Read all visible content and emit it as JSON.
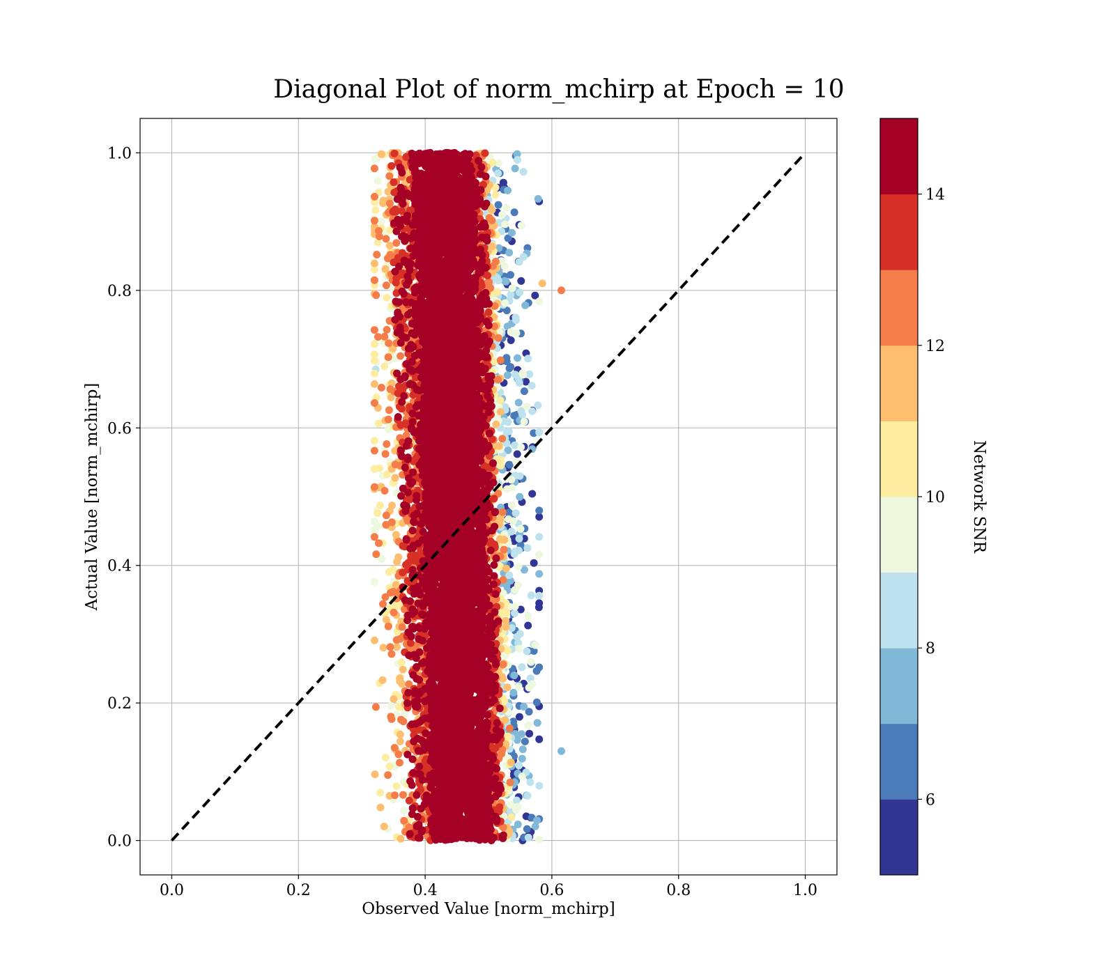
{
  "chart_data": {
    "type": "scatter",
    "title": "Diagonal Plot of norm_mchirp at Epoch = 10",
    "xlabel": "Observed Value [norm_mchirp]",
    "ylabel": "Actual Value [norm_mchirp]",
    "xlim": [
      -0.05,
      1.05
    ],
    "ylim": [
      -0.05,
      1.05
    ],
    "x_ticks": [
      0.0,
      0.2,
      0.4,
      0.6,
      0.8,
      1.0
    ],
    "y_ticks": [
      0.0,
      0.2,
      0.4,
      0.6,
      0.8,
      1.0
    ],
    "x_tick_labels": [
      "0.0",
      "0.2",
      "0.4",
      "0.6",
      "0.8",
      "1.0"
    ],
    "y_tick_labels": [
      "0.0",
      "0.2",
      "0.4",
      "0.6",
      "0.8",
      "1.0"
    ],
    "grid": true,
    "reference_line": {
      "x": [
        0.0,
        1.0
      ],
      "y": [
        0.0,
        1.0
      ],
      "style": "dashed",
      "color": "#000000"
    },
    "point_cloud": {
      "description_ranges": {
        "x_center_at_y0": 0.46,
        "x_center_at_y1": 0.43,
        "x_range": [
          0.32,
          0.62
        ],
        "y_range": [
          0.0,
          1.0
        ]
      },
      "outliers": [
        {
          "x": 0.615,
          "y": 0.8,
          "snr": 12.5
        },
        {
          "x": 0.615,
          "y": 0.13,
          "snr": 7.5
        },
        {
          "x": 0.585,
          "y": 0.81,
          "snr": 11.5
        },
        {
          "x": 0.322,
          "y": 0.685,
          "snr": 8.5
        }
      ]
    },
    "colorbar": {
      "label": "Network SNR",
      "range": [
        5,
        15
      ],
      "ticks": [
        6,
        8,
        10,
        12,
        14
      ],
      "tick_labels": [
        "6",
        "8",
        "10",
        "12",
        "14"
      ],
      "bins": [
        {
          "from": 5,
          "to": 6,
          "color": "#313695"
        },
        {
          "from": 6,
          "to": 7,
          "color": "#4a7ab7"
        },
        {
          "from": 7,
          "to": 8,
          "color": "#81b7d7"
        },
        {
          "from": 8,
          "to": 9,
          "color": "#bde2ee"
        },
        {
          "from": 9,
          "to": 10,
          "color": "#eef8df"
        },
        {
          "from": 10,
          "to": 11,
          "color": "#feeda1"
        },
        {
          "from": 11,
          "to": 12,
          "color": "#fdbf6f"
        },
        {
          "from": 12,
          "to": 13,
          "color": "#f57d4a"
        },
        {
          "from": 13,
          "to": 14,
          "color": "#d73027"
        },
        {
          "from": 14,
          "to": 15,
          "color": "#a50026"
        }
      ]
    }
  }
}
